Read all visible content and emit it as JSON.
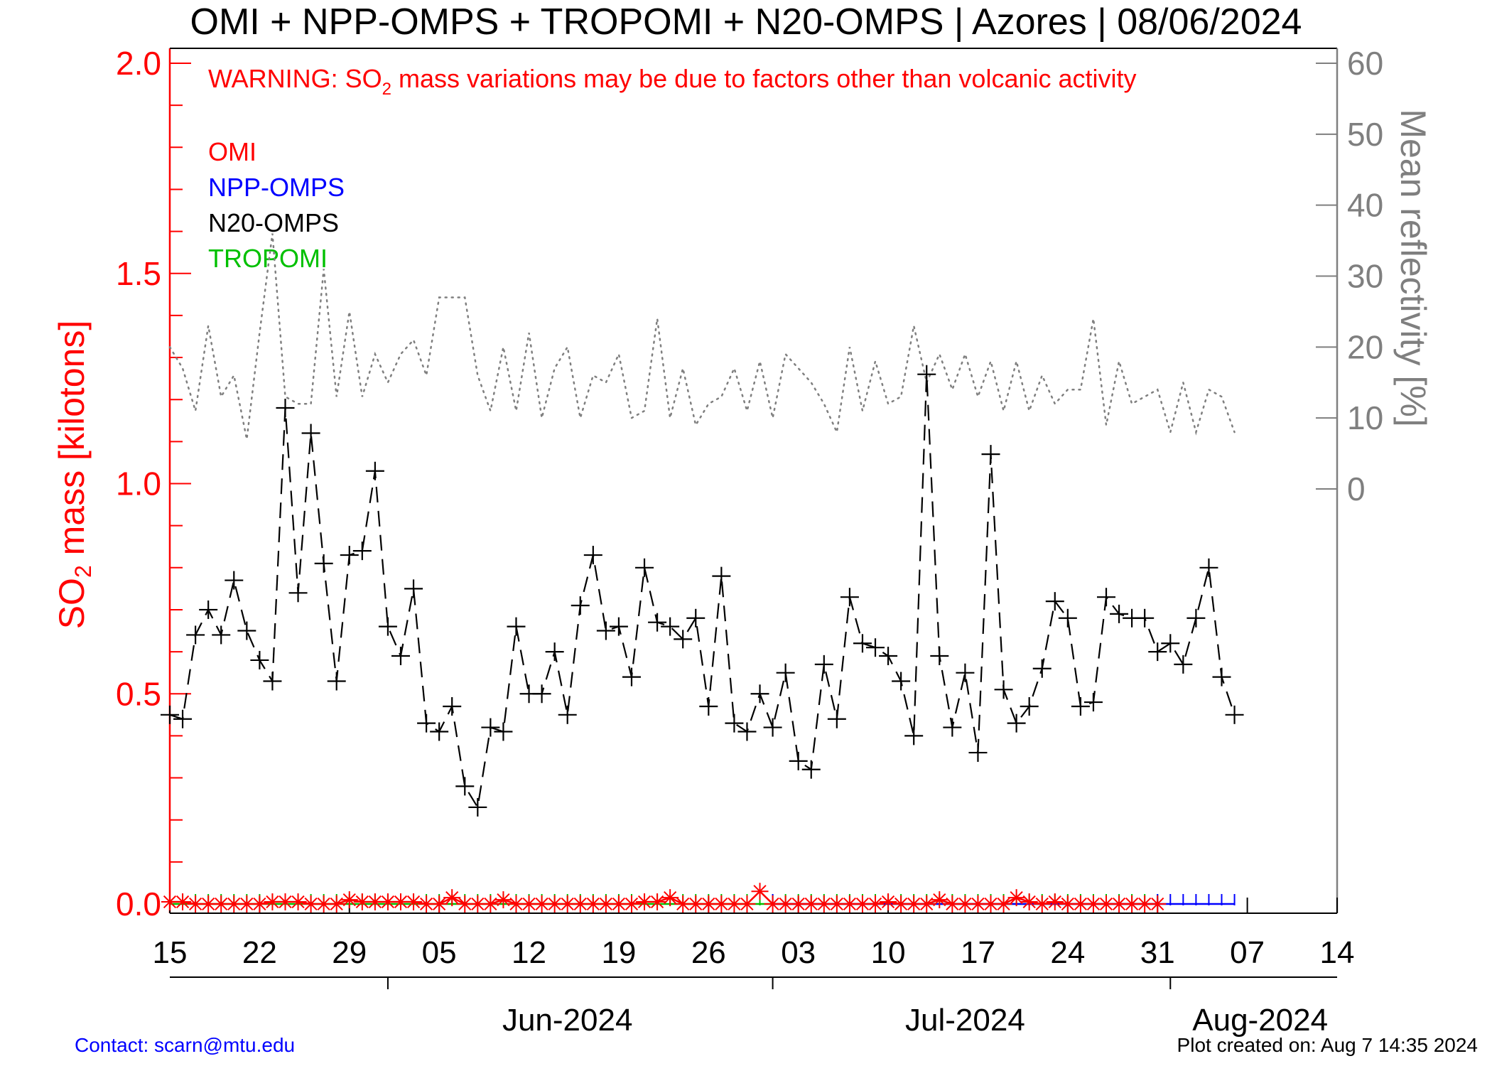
{
  "title": "OMI + NPP-OMPS + TROPOMI + N20-OMPS | Azores | 08/06/2024",
  "warning": {
    "prefix": "WARNING: SO",
    "sub": "2",
    "suffix": " mass variations may be due to factors other than volcanic activity"
  },
  "y_left_label": {
    "prefix": "SO",
    "sub": "2",
    "suffix": " mass [kilotons]"
  },
  "y_right_label": "Mean reflectivity [%]",
  "legend": [
    {
      "name": "OMI",
      "color": "#ff0000"
    },
    {
      "name": "NPP-OMPS",
      "color": "#0000ff"
    },
    {
      "name": "N20-OMPS",
      "color": "#000000"
    },
    {
      "name": "TROPOMI",
      "color": "#00c000"
    }
  ],
  "contact": "Contact: scarn@mtu.edu",
  "plot_created": "Plot created on: Aug  7 14:35 2024",
  "chart_data": {
    "type": "line",
    "x_unit": "date (2024)",
    "x_range": [
      "2024-05-15",
      "2024-08-14"
    ],
    "x_tick_labels": [
      "15",
      "22",
      "29",
      "05",
      "12",
      "19",
      "26",
      "03",
      "10",
      "17",
      "24",
      "31",
      "07",
      "14"
    ],
    "month_labels": [
      "Jun-2024",
      "Jul-2024",
      "Aug-2024"
    ],
    "y_left": {
      "label": "SO2 mass [kilotons]",
      "range": [
        0.0,
        2.0
      ],
      "ticks": [
        "0.0",
        "0.5",
        "1.0",
        "1.5",
        "2.0"
      ],
      "color": "#ff0000"
    },
    "y_right": {
      "label": "Mean reflectivity [%]",
      "range": [
        -58.5,
        60
      ],
      "ticks": [
        "0",
        "10",
        "20",
        "30",
        "40",
        "50",
        "60"
      ],
      "color": "#7f7f7f"
    },
    "series": [
      {
        "name": "N20-OMPS",
        "axis": "left",
        "style": "dashed, plus markers",
        "color": "#000000",
        "x": [
          "05-15",
          "05-16",
          "05-17",
          "05-18",
          "05-19",
          "05-20",
          "05-21",
          "05-22",
          "05-23",
          "05-24",
          "05-25",
          "05-26",
          "05-27",
          "05-28",
          "05-29",
          "05-30",
          "05-31",
          "06-01",
          "06-02",
          "06-03",
          "06-04",
          "06-05",
          "06-06",
          "06-07",
          "06-08",
          "06-09",
          "06-10",
          "06-11",
          "06-12",
          "06-13",
          "06-14",
          "06-15",
          "06-16",
          "06-17",
          "06-18",
          "06-19",
          "06-20",
          "06-21",
          "06-22",
          "06-23",
          "06-24",
          "06-25",
          "06-26",
          "06-27",
          "06-28",
          "06-29",
          "06-30",
          "07-01",
          "07-02",
          "07-03",
          "07-04",
          "07-05",
          "07-06",
          "07-07",
          "07-08",
          "07-09",
          "07-10",
          "07-11",
          "07-12",
          "07-13",
          "07-14",
          "07-15",
          "07-16",
          "07-17",
          "07-18",
          "07-19",
          "07-20",
          "07-21",
          "07-22",
          "07-23",
          "07-24",
          "07-25",
          "07-26",
          "07-27",
          "07-28",
          "07-29",
          "07-30",
          "07-31",
          "08-01",
          "08-02",
          "08-03",
          "08-04",
          "08-05",
          "08-06"
        ],
        "y": [
          0.45,
          0.44,
          0.64,
          0.7,
          0.64,
          0.77,
          0.65,
          0.58,
          0.53,
          1.18,
          0.74,
          1.12,
          0.81,
          0.53,
          0.83,
          0.84,
          1.03,
          0.66,
          0.59,
          0.75,
          0.43,
          0.41,
          0.47,
          0.28,
          0.23,
          0.42,
          0.41,
          0.66,
          0.5,
          0.5,
          0.6,
          0.45,
          0.71,
          0.83,
          0.65,
          0.66,
          0.54,
          0.8,
          0.67,
          0.66,
          0.63,
          0.68,
          0.47,
          0.78,
          0.43,
          0.41,
          0.5,
          0.42,
          0.55,
          0.34,
          0.32,
          0.57,
          0.44,
          0.73,
          0.62,
          0.61,
          0.59,
          0.53,
          0.4,
          1.26,
          0.59,
          0.42,
          0.55,
          0.36,
          1.07,
          0.51,
          0.43,
          0.47,
          0.56,
          0.72,
          0.68,
          0.47,
          0.48,
          0.73,
          0.69,
          0.68,
          0.68,
          0.6,
          0.62,
          0.57,
          0.68,
          0.8,
          0.54,
          0.45
        ]
      },
      {
        "name": "Mean reflectivity",
        "axis": "right",
        "style": "dotted, no markers",
        "color": "#7f7f7f",
        "x": [
          "05-15",
          "05-16",
          "05-17",
          "05-18",
          "05-19",
          "05-20",
          "05-21",
          "05-22",
          "05-23",
          "05-24",
          "05-25",
          "05-26",
          "05-27",
          "05-28",
          "05-29",
          "05-30",
          "05-31",
          "06-01",
          "06-02",
          "06-03",
          "06-04",
          "06-05",
          "06-06",
          "06-07",
          "06-08",
          "06-09",
          "06-10",
          "06-11",
          "06-12",
          "06-13",
          "06-14",
          "06-15",
          "06-16",
          "06-17",
          "06-18",
          "06-19",
          "06-20",
          "06-21",
          "06-22",
          "06-23",
          "06-24",
          "06-25",
          "06-26",
          "06-27",
          "06-28",
          "06-29",
          "06-30",
          "07-01",
          "07-02",
          "07-03",
          "07-04",
          "07-05",
          "07-06",
          "07-07",
          "07-08",
          "07-09",
          "07-10",
          "07-11",
          "07-12",
          "07-13",
          "07-14",
          "07-15",
          "07-16",
          "07-17",
          "07-18",
          "07-19",
          "07-20",
          "07-21",
          "07-22",
          "07-23",
          "07-24",
          "07-25",
          "07-26",
          "07-27",
          "07-28",
          "07-29",
          "07-30",
          "07-31",
          "08-01",
          "08-02",
          "08-03",
          "08-04",
          "08-05",
          "08-06"
        ],
        "y": [
          20,
          17,
          11,
          23,
          13,
          16,
          7,
          22,
          36,
          13,
          12,
          12,
          31,
          13,
          25,
          13,
          19,
          15,
          19,
          21,
          16,
          27,
          27,
          27,
          16,
          11,
          20,
          11,
          22,
          10,
          17,
          20,
          10,
          16,
          15,
          19,
          10,
          11,
          24,
          10,
          17,
          9,
          12,
          13,
          17,
          11,
          18,
          10,
          19,
          17,
          15,
          12,
          8,
          20,
          11,
          18,
          12,
          13,
          23,
          15,
          19,
          14,
          19,
          13,
          18,
          11,
          18,
          11,
          16,
          12,
          14,
          14,
          24,
          9,
          18,
          12,
          13,
          14,
          8,
          15,
          8,
          14,
          13,
          8
        ]
      },
      {
        "name": "OMI",
        "axis": "left",
        "style": "solid, star markers",
        "color": "#ff0000",
        "x": [
          "05-15",
          "05-16",
          "05-17",
          "05-18",
          "05-19",
          "05-20",
          "05-21",
          "05-22",
          "05-23",
          "05-24",
          "05-25",
          "05-26",
          "05-27",
          "05-28",
          "05-29",
          "05-30",
          "05-31",
          "06-01",
          "06-02",
          "06-03",
          "06-04",
          "06-05",
          "06-06",
          "06-07",
          "06-08",
          "06-09",
          "06-10",
          "06-11",
          "06-12",
          "06-13",
          "06-14",
          "06-15",
          "06-16",
          "06-17",
          "06-18",
          "06-19",
          "06-20",
          "06-21",
          "06-22",
          "06-23",
          "06-24",
          "06-25",
          "06-26",
          "06-27",
          "06-28",
          "06-29",
          "06-30",
          "07-01",
          "07-02",
          "07-03",
          "07-04",
          "07-05",
          "07-06",
          "07-07",
          "07-08",
          "07-09",
          "07-10",
          "07-11",
          "07-12",
          "07-13",
          "07-14",
          "07-15",
          "07-16",
          "07-17",
          "07-18",
          "07-19",
          "07-20",
          "07-21",
          "07-22",
          "07-23",
          "07-24",
          "07-25",
          "07-26",
          "07-27",
          "07-28",
          "07-29",
          "07-30",
          "07-31"
        ],
        "y": [
          0.005,
          0.005,
          0.0,
          0.0,
          0.0,
          0.0,
          0.0,
          0.0,
          0.005,
          0.005,
          0.005,
          0.0,
          0.0,
          0.0,
          0.01,
          0.005,
          0.005,
          0.005,
          0.005,
          0.005,
          0.0,
          0.0,
          0.015,
          0.0,
          0.0,
          0.0,
          0.01,
          0.0,
          0.0,
          0.0,
          0.0,
          0.0,
          0.0,
          0.0,
          0.0,
          0.0,
          0.0,
          0.005,
          0.005,
          0.015,
          0.0,
          0.0,
          0.0,
          0.0,
          0.0,
          0.0,
          0.03,
          0.0,
          0.0,
          0.0,
          0.0,
          0.0,
          0.0,
          0.0,
          0.0,
          0.0,
          0.005,
          0.0,
          0.0,
          0.0,
          0.01,
          0.0,
          0.0,
          0.0,
          0.0,
          0.0,
          0.015,
          0.005,
          0.0,
          0.005,
          0.0,
          0.0,
          0.0,
          0.0,
          0.0,
          0.0,
          0.0,
          0.0
        ]
      },
      {
        "name": "NPP-OMPS",
        "axis": "left",
        "style": "solid, tick markers",
        "color": "#0000ff",
        "x": [
          "07-01",
          "07-31",
          "08-01",
          "08-02",
          "08-03",
          "08-04",
          "08-05",
          "08-06"
        ],
        "y": [
          0.0,
          0.0,
          0.0,
          0.0,
          0.0,
          0.0,
          0.0,
          0.0
        ]
      },
      {
        "name": "TROPOMI",
        "axis": "left",
        "style": "solid, tick markers",
        "color": "#00c000",
        "x": [
          "05-15",
          "05-16",
          "05-17",
          "05-18",
          "05-19",
          "05-20",
          "05-21",
          "05-22",
          "05-23",
          "05-24",
          "05-25",
          "05-26",
          "05-27",
          "05-28",
          "05-29",
          "05-30",
          "05-31",
          "06-01",
          "06-02",
          "06-03",
          "06-04",
          "06-05",
          "06-06",
          "06-07",
          "06-08",
          "06-09",
          "06-10",
          "06-11",
          "06-12",
          "06-13",
          "06-14",
          "06-15",
          "06-16",
          "06-17",
          "06-18",
          "06-19",
          "06-20",
          "06-21",
          "06-22",
          "06-23",
          "06-24",
          "06-25",
          "06-26",
          "06-27",
          "06-28",
          "06-29",
          "06-30",
          "07-01",
          "07-02",
          "07-03",
          "07-04",
          "07-05",
          "07-06",
          "07-07",
          "07-08",
          "07-09",
          "07-10",
          "07-11",
          "07-12",
          "07-13",
          "07-14",
          "07-15",
          "07-16",
          "07-17",
          "07-18",
          "07-19",
          "07-20",
          "07-21",
          "07-22",
          "07-23",
          "07-24",
          "07-25",
          "07-26",
          "07-27",
          "07-28",
          "07-29",
          "07-30",
          "07-31"
        ],
        "y": [
          0.0,
          0.0,
          0.0,
          0.0,
          0.0,
          0.0,
          0.0,
          0.0,
          0.0,
          0.0,
          0.0,
          0.0,
          0.0,
          0.0,
          0.0,
          0.0,
          0.0,
          0.0,
          0.0,
          0.0,
          0.0,
          0.0,
          0.0,
          0.0,
          0.0,
          0.0,
          0.0,
          0.0,
          0.0,
          0.0,
          0.0,
          0.0,
          0.0,
          0.0,
          0.0,
          0.0,
          0.0,
          0.0,
          0.0,
          0.0,
          0.0,
          0.0,
          0.0,
          0.0,
          0.0,
          0.0,
          0.0,
          0.0,
          0.0,
          0.0,
          0.0,
          0.0,
          0.0,
          0.0,
          0.0,
          0.0,
          0.0,
          0.0,
          0.0,
          0.0,
          0.0,
          0.0,
          0.0,
          0.0,
          0.0,
          0.0,
          0.0,
          0.0,
          0.0,
          0.0,
          0.0,
          0.0,
          0.0,
          0.0,
          0.0,
          0.0,
          0.0,
          0.0
        ]
      }
    ],
    "grid": false,
    "legend_position": "top-left inside plot"
  }
}
